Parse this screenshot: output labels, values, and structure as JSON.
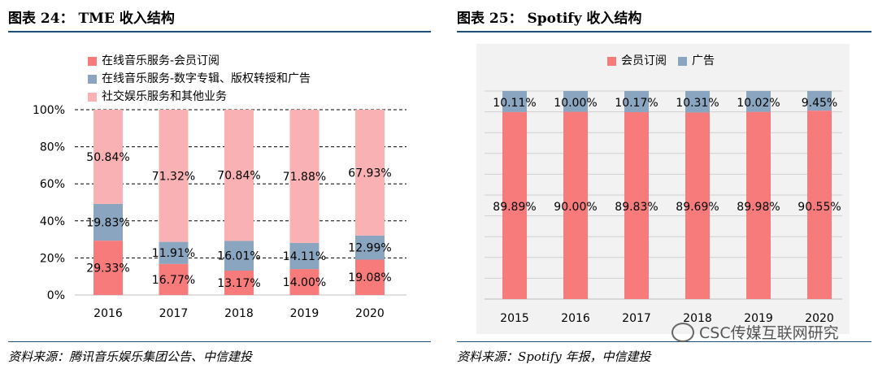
{
  "left_panel": {
    "title": "图表 24：  TME 收入结构",
    "source": "资料来源：腾讯音乐娱乐集团公告、中信建投"
  },
  "right_panel": {
    "title": "图表 25：  Spotify 收入结构",
    "source": "资料来源：Spotify 年报，中信建投"
  },
  "watermark": "CSC传媒互联网研究",
  "colors": {
    "rule": "#1f4e79",
    "red": "#f77b7b",
    "blue": "#8aa5bf",
    "pink": "#f9b1b3"
  },
  "chart_data": [
    {
      "type": "bar",
      "stacked": true,
      "categories": [
        "2016",
        "2017",
        "2018",
        "2019",
        "2020"
      ],
      "series": [
        {
          "name": "在线音乐服务-会员订阅",
          "color": "#f77b7b",
          "values": [
            29.33,
            16.77,
            13.17,
            14.0,
            19.08
          ],
          "labels": [
            "29.33%",
            "16.77%",
            "13.17%",
            "14.00%",
            "19.08%"
          ]
        },
        {
          "name": "在线音乐服务-数字专辑、版权转授和广告",
          "color": "#8aa5bf",
          "values": [
            19.83,
            11.91,
            16.01,
            14.11,
            12.99
          ],
          "labels": [
            "19.83%",
            "11.91%",
            "16.01%",
            "14.11%",
            "12.99%"
          ]
        },
        {
          "name": "社交娱乐服务和其他业务",
          "color": "#f9b1b3",
          "values": [
            50.84,
            71.32,
            70.84,
            71.88,
            67.93
          ],
          "labels": [
            "50.84%",
            "71.32%",
            "70.84%",
            "71.88%",
            "67.93%"
          ]
        }
      ],
      "ylim": [
        0,
        100
      ],
      "yticks": [
        "0%",
        "20%",
        "40%",
        "60%",
        "80%",
        "100%"
      ],
      "legend": "top-left"
    },
    {
      "type": "bar",
      "stacked": true,
      "categories": [
        "2015",
        "2016",
        "2017",
        "2018",
        "2019",
        "2020"
      ],
      "series": [
        {
          "name": "会员订阅",
          "color": "#f77b7b",
          "values": [
            89.89,
            90.0,
            89.83,
            89.69,
            89.98,
            90.55
          ],
          "labels": [
            "89.89%",
            "90.00%",
            "89.83%",
            "89.69%",
            "89.98%",
            "90.55%"
          ]
        },
        {
          "name": "广告",
          "color": "#8aa5bf",
          "values": [
            10.11,
            10.0,
            10.17,
            10.31,
            10.02,
            9.45
          ],
          "labels": [
            "10.11%",
            "10.00%",
            "10.17%",
            "10.31%",
            "10.02%",
            "9.45%"
          ]
        }
      ],
      "ylim": [
        0,
        100
      ],
      "legend": "top"
    }
  ]
}
